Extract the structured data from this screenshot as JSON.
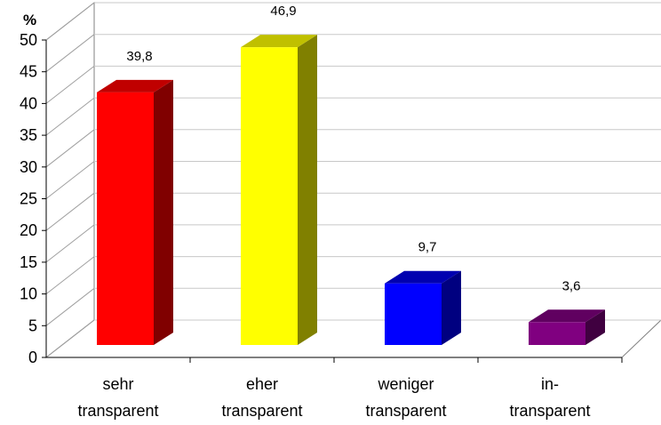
{
  "chart_data": {
    "type": "bar",
    "style": "3d-column",
    "y_unit_label": "%",
    "categories": [
      [
        "sehr",
        "transparent"
      ],
      [
        "eher",
        "transparent"
      ],
      [
        "weniger",
        "transparent"
      ],
      [
        "in-",
        "transparent"
      ]
    ],
    "values": [
      39.8,
      46.9,
      9.7,
      3.6
    ],
    "data_labels": [
      "39,8",
      "46,9",
      "9,7",
      "3,6"
    ],
    "yticks": [
      "0",
      "5",
      "10",
      "15",
      "20",
      "25",
      "30",
      "35",
      "40",
      "45",
      "50"
    ],
    "ylim": [
      0,
      50
    ],
    "grid": true,
    "legend": "none",
    "colors": [
      {
        "front": "#ff0000",
        "top": "#c00000",
        "side": "#800000"
      },
      {
        "front": "#ffff00",
        "top": "#c0c000",
        "side": "#808000"
      },
      {
        "front": "#0000ff",
        "top": "#0000b0",
        "side": "#000080"
      },
      {
        "front": "#800080",
        "top": "#600060",
        "side": "#400040"
      }
    ]
  }
}
